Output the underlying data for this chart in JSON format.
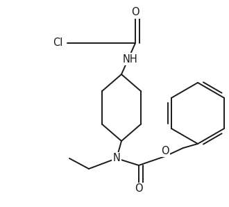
{
  "background_color": "#ffffff",
  "line_color": "#1a1a1a",
  "line_width": 1.4,
  "font_size": 10.5,
  "figsize": [
    3.3,
    2.98
  ],
  "dpi": 100,
  "xlim": [
    0,
    330
  ],
  "ylim": [
    0,
    298
  ]
}
